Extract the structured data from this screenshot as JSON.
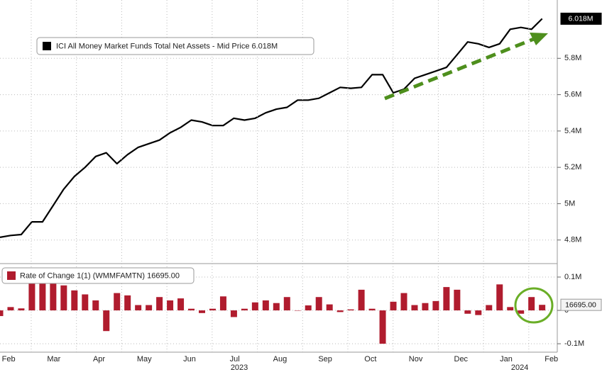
{
  "chart_data": [
    {
      "type": "line",
      "legend": "ICI All Money Market Funds Total Net Assets - Mid Price 6.018M",
      "last_value_label": "6.018M",
      "color": "#000000",
      "xlim": [
        -0.19,
        12.13
      ],
      "ylim": [
        4.678,
        6.121
      ],
      "yticks": [
        {
          "value": 4.8,
          "label": "4.8M"
        },
        {
          "value": 5,
          "label": "5M"
        },
        {
          "value": 5.2,
          "label": "5.2M"
        },
        {
          "value": 5.4,
          "label": "5.4M"
        },
        {
          "value": 5.6,
          "label": "5.6M"
        },
        {
          "value": 5.8,
          "label": "5.8M"
        }
      ],
      "grid": true,
      "x": [
        -0.19,
        0.045,
        0.28,
        0.515,
        0.75,
        0.985,
        1.22,
        1.455,
        1.69,
        1.925,
        2.16,
        2.395,
        2.63,
        2.865,
        3.1,
        3.335,
        3.57,
        3.805,
        4.04,
        4.275,
        4.51,
        4.745,
        4.98,
        5.215,
        5.45,
        5.685,
        5.92,
        6.155,
        6.39,
        6.625,
        6.86,
        7.095,
        7.33,
        7.565,
        7.8,
        8.035,
        8.27,
        8.505,
        8.74,
        8.975,
        9.21,
        9.445,
        9.68,
        9.915,
        10.15,
        10.385,
        10.62,
        10.855,
        11.09,
        11.325,
        11.56,
        11.795
      ],
      "values": [
        4.815,
        4.825,
        4.83,
        4.9,
        4.9,
        4.99,
        5.08,
        5.15,
        5.2,
        5.26,
        5.28,
        5.22,
        5.27,
        5.31,
        5.33,
        5.35,
        5.39,
        5.42,
        5.46,
        5.45,
        5.43,
        5.43,
        5.47,
        5.46,
        5.47,
        5.5,
        5.52,
        5.53,
        5.57,
        5.57,
        5.58,
        5.61,
        5.64,
        5.635,
        5.64,
        5.71,
        5.71,
        5.61,
        5.63,
        5.69,
        5.71,
        5.73,
        5.75,
        5.82,
        5.89,
        5.88,
        5.86,
        5.88,
        5.96,
        5.97,
        5.96,
        6.018
      ]
    },
    {
      "type": "bar",
      "legend": "Rate of Change 1(1) (WMMFAMTN) 16695.00",
      "last_value_label": "16695.00",
      "color": "#b01c2e",
      "xlim": [
        -0.19,
        12.13
      ],
      "ylim": [
        -121000,
        134000
      ],
      "yticks": [
        {
          "value": -100000,
          "label": "-0.1M"
        },
        0,
        {
          "value": 100000,
          "label": "0.1M"
        }
      ],
      "grid": true,
      "xticks": [
        {
          "value": 0,
          "label": "Feb"
        },
        {
          "value": 1,
          "label": "Mar"
        },
        {
          "value": 2,
          "label": "Apr"
        },
        {
          "value": 3,
          "label": "May"
        },
        {
          "value": 4,
          "label": "Jun"
        },
        {
          "value": 5,
          "label": "Jul"
        },
        {
          "value": 6,
          "label": "Aug"
        },
        {
          "value": 7,
          "label": "Sep"
        },
        {
          "value": 8,
          "label": "Oct"
        },
        {
          "value": 9,
          "label": "Nov"
        },
        {
          "value": 10,
          "label": "Dec"
        },
        {
          "value": 11,
          "label": "Jan"
        },
        {
          "value": 12,
          "label": "Feb"
        }
      ],
      "year_labels": [
        {
          "value": 5.1,
          "label": "2023"
        },
        {
          "value": 11.3,
          "label": "2024"
        }
      ],
      "x": [
        -0.19,
        0.045,
        0.28,
        0.515,
        0.75,
        0.985,
        1.22,
        1.455,
        1.69,
        1.925,
        2.16,
        2.395,
        2.63,
        2.865,
        3.1,
        3.335,
        3.57,
        3.805,
        4.04,
        4.275,
        4.51,
        4.745,
        4.98,
        5.215,
        5.45,
        5.685,
        5.92,
        6.155,
        6.39,
        6.625,
        6.86,
        7.095,
        7.33,
        7.565,
        7.8,
        8.035,
        8.27,
        8.505,
        8.74,
        8.975,
        9.21,
        9.445,
        9.68,
        9.915,
        10.15,
        10.385,
        10.62,
        10.855,
        11.09,
        11.325,
        11.56,
        11.795
      ],
      "values": [
        -17000,
        10000,
        6000,
        80000,
        80000,
        80000,
        75000,
        60000,
        48000,
        30000,
        -62000,
        52000,
        45000,
        16000,
        16000,
        40000,
        30000,
        36000,
        5000,
        -8000,
        5000,
        42000,
        -20000,
        5000,
        24000,
        30000,
        22000,
        40000,
        0,
        15000,
        40000,
        18000,
        -5000,
        3000,
        62000,
        5000,
        -100000,
        26000,
        52000,
        16000,
        22000,
        28000,
        70000,
        62000,
        -10000,
        -14000,
        16000,
        78000,
        10000,
        -10000,
        40000,
        16695
      ]
    }
  ]
}
